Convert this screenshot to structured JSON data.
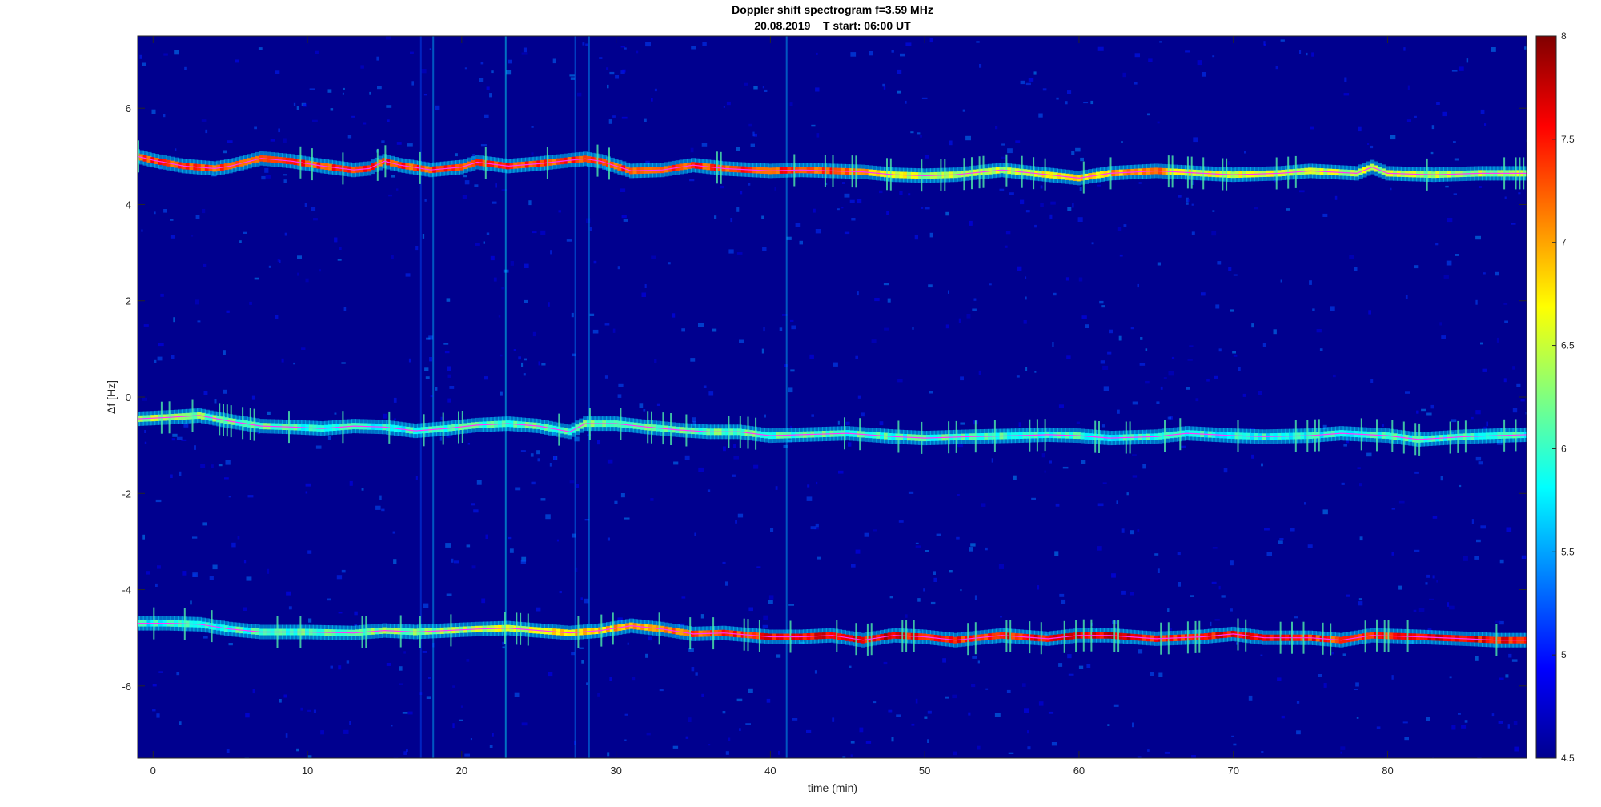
{
  "chart_data": {
    "type": "heatmap",
    "title": "Doppler shift spectrogram f=3.59 MHz",
    "subtitle": "20.08.2019    T start: 06:00 UT",
    "xlabel": "time (min)",
    "ylabel": "Δf [Hz]",
    "xlim": [
      -1,
      89
    ],
    "ylim": [
      -7.5,
      7.5
    ],
    "xticks": [
      0,
      10,
      20,
      30,
      40,
      50,
      60,
      70,
      80
    ],
    "yticks": [
      -6,
      -4,
      -2,
      0,
      2,
      4,
      6
    ],
    "colorbar": {
      "colormap": "jet",
      "range": [
        4.5,
        8
      ],
      "ticks": [
        4.5,
        5,
        5.5,
        6,
        6.5,
        7,
        7.5,
        8
      ]
    },
    "grid": false,
    "background_level": 4.5,
    "series": [
      {
        "trace_color": "#ff33ff",
        "points": [
          [
            -1,
            5.0
          ],
          [
            0,
            4.92
          ],
          [
            2,
            4.8
          ],
          [
            4,
            4.75
          ],
          [
            5,
            4.8
          ],
          [
            7,
            4.96
          ],
          [
            9,
            4.9
          ],
          [
            11,
            4.8
          ],
          [
            13,
            4.72
          ],
          [
            14,
            4.75
          ],
          [
            15,
            4.9
          ],
          [
            16,
            4.82
          ],
          [
            18,
            4.72
          ],
          [
            20,
            4.78
          ],
          [
            21,
            4.88
          ],
          [
            23,
            4.8
          ],
          [
            25,
            4.85
          ],
          [
            27,
            4.92
          ],
          [
            28,
            4.95
          ],
          [
            29,
            4.9
          ],
          [
            31,
            4.7
          ],
          [
            33,
            4.72
          ],
          [
            35,
            4.82
          ],
          [
            37,
            4.75
          ],
          [
            40,
            4.7
          ],
          [
            42,
            4.72
          ],
          [
            44,
            4.7
          ],
          [
            46,
            4.68
          ],
          [
            48,
            4.62
          ],
          [
            50,
            4.6
          ],
          [
            52,
            4.62
          ],
          [
            55,
            4.72
          ],
          [
            58,
            4.62
          ],
          [
            60,
            4.55
          ],
          [
            62,
            4.65
          ],
          [
            65,
            4.7
          ],
          [
            68,
            4.65
          ],
          [
            70,
            4.62
          ],
          [
            73,
            4.65
          ],
          [
            75,
            4.7
          ],
          [
            78,
            4.65
          ],
          [
            79,
            4.78
          ],
          [
            80,
            4.65
          ],
          [
            83,
            4.62
          ],
          [
            86,
            4.65
          ],
          [
            89,
            4.65
          ]
        ],
        "peak": [
          [
            44,
            7.5
          ],
          [
            46,
            7.2
          ],
          [
            50,
            6.5
          ],
          [
            54,
            6.5
          ],
          [
            65,
            7.3
          ],
          [
            67,
            6.8
          ],
          [
            84,
            6.5
          ],
          [
            88,
            6.5
          ]
        ]
      },
      {
        "trace_color": "#ff33ff",
        "points": [
          [
            -1,
            -0.45
          ],
          [
            1,
            -0.42
          ],
          [
            3,
            -0.38
          ],
          [
            5,
            -0.5
          ],
          [
            7,
            -0.6
          ],
          [
            9,
            -0.62
          ],
          [
            11,
            -0.65
          ],
          [
            13,
            -0.6
          ],
          [
            15,
            -0.62
          ],
          [
            17,
            -0.7
          ],
          [
            19,
            -0.65
          ],
          [
            21,
            -0.58
          ],
          [
            23,
            -0.55
          ],
          [
            25,
            -0.6
          ],
          [
            27,
            -0.72
          ],
          [
            28,
            -0.55
          ],
          [
            30,
            -0.55
          ],
          [
            32,
            -0.62
          ],
          [
            34,
            -0.68
          ],
          [
            36,
            -0.72
          ],
          [
            38,
            -0.72
          ],
          [
            40,
            -0.8
          ],
          [
            42,
            -0.78
          ],
          [
            45,
            -0.75
          ],
          [
            48,
            -0.82
          ],
          [
            50,
            -0.85
          ],
          [
            53,
            -0.82
          ],
          [
            56,
            -0.8
          ],
          [
            58,
            -0.78
          ],
          [
            60,
            -0.8
          ],
          [
            62,
            -0.85
          ],
          [
            65,
            -0.82
          ],
          [
            67,
            -0.75
          ],
          [
            70,
            -0.8
          ],
          [
            72,
            -0.82
          ],
          [
            75,
            -0.8
          ],
          [
            77,
            -0.75
          ],
          [
            80,
            -0.8
          ],
          [
            82,
            -0.88
          ],
          [
            85,
            -0.82
          ],
          [
            89,
            -0.78
          ]
        ],
        "peak": [
          [
            0,
            6.5
          ],
          [
            4,
            6.3
          ],
          [
            14,
            6.0
          ],
          [
            22,
            6.2
          ],
          [
            30,
            6.3
          ],
          [
            45,
            6.2
          ],
          [
            70,
            6.0
          ],
          [
            80,
            6.1
          ]
        ]
      },
      {
        "trace_color": "#ff33ff",
        "points": [
          [
            -1,
            -4.7
          ],
          [
            1,
            -4.7
          ],
          [
            3,
            -4.72
          ],
          [
            5,
            -4.82
          ],
          [
            7,
            -4.88
          ],
          [
            10,
            -4.88
          ],
          [
            13,
            -4.9
          ],
          [
            15,
            -4.85
          ],
          [
            17,
            -4.88
          ],
          [
            19,
            -4.85
          ],
          [
            21,
            -4.82
          ],
          [
            23,
            -4.8
          ],
          [
            25,
            -4.85
          ],
          [
            27,
            -4.9
          ],
          [
            29,
            -4.85
          ],
          [
            31,
            -4.75
          ],
          [
            33,
            -4.82
          ],
          [
            35,
            -4.92
          ],
          [
            37,
            -4.9
          ],
          [
            40,
            -4.98
          ],
          [
            42,
            -4.98
          ],
          [
            44,
            -4.95
          ],
          [
            46,
            -5.05
          ],
          [
            48,
            -4.95
          ],
          [
            50,
            -4.98
          ],
          [
            52,
            -5.05
          ],
          [
            55,
            -4.95
          ],
          [
            58,
            -5.02
          ],
          [
            60,
            -4.95
          ],
          [
            62,
            -4.95
          ],
          [
            65,
            -5.02
          ],
          [
            68,
            -4.98
          ],
          [
            70,
            -4.92
          ],
          [
            72,
            -5.0
          ],
          [
            75,
            -5.0
          ],
          [
            77,
            -5.05
          ],
          [
            79,
            -4.95
          ],
          [
            82,
            -4.98
          ],
          [
            85,
            -5.02
          ],
          [
            87,
            -5.05
          ],
          [
            89,
            -5.05
          ]
        ],
        "peak": [
          [
            0,
            6.0
          ],
          [
            12,
            6.3
          ],
          [
            20,
            6.5
          ],
          [
            40,
            7.7
          ],
          [
            48,
            7.8
          ],
          [
            52,
            7.6
          ],
          [
            62,
            7.8
          ],
          [
            66,
            7.6
          ],
          [
            72,
            7.8
          ],
          [
            77,
            7.5
          ],
          [
            84,
            7.8
          ],
          [
            88,
            7.6
          ]
        ]
      }
    ],
    "vertical_streaks": [
      {
        "x": 17.3,
        "level": 5.2
      },
      {
        "x": 18.1,
        "level": 5.6
      },
      {
        "x": 22.8,
        "level": 5.8
      },
      {
        "x": 27.3,
        "level": 5.4
      },
      {
        "x": 28.2,
        "level": 5.5
      },
      {
        "x": 41.0,
        "level": 5.6
      }
    ]
  }
}
